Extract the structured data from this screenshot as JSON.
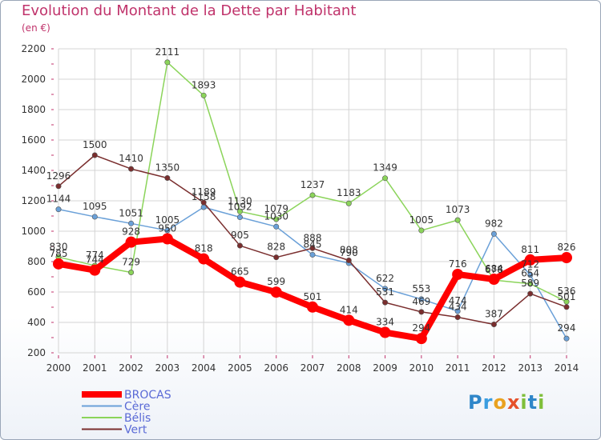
{
  "header": {
    "title": "Evolution du Montant de la Dette par Habitant",
    "unit": "(en €)"
  },
  "logo": {
    "text": "Proxiti"
  },
  "chart_data": {
    "type": "line",
    "x": [
      "2000",
      "2001",
      "2002",
      "2003",
      "2004",
      "2005",
      "2006",
      "2007",
      "2008",
      "2009",
      "2010",
      "2011",
      "2012",
      "2013",
      "2014"
    ],
    "ylim": [
      200,
      2200
    ],
    "yticks": [
      200,
      400,
      600,
      800,
      1000,
      1200,
      1400,
      1600,
      1800,
      2000,
      2200
    ],
    "grid": true,
    "legend_position": "bottom-left",
    "series": [
      {
        "name": "BROCAS",
        "color": "#ff0000",
        "values": [
          785,
          744,
          928,
          950,
          818,
          665,
          599,
          501,
          414,
          334,
          294,
          716,
          684,
          811,
          826
        ],
        "labels": [
          "785",
          "744",
          "928",
          "950",
          "818",
          "665",
          "599",
          "501",
          "414",
          "334",
          "294",
          "716",
          "684",
          "811",
          "826"
        ]
      },
      {
        "name": "Cère",
        "color": "#6aa0d8",
        "values": [
          1144,
          1095,
          1051,
          1005,
          1158,
          1092,
          1030,
          845,
          790,
          622,
          553,
          474,
          982,
          712,
          294
        ],
        "labels": [
          "1144",
          "1095",
          "1051",
          "1005",
          "1158",
          "1092",
          "1030",
          "845",
          "790",
          "622",
          "553",
          "474",
          "982",
          "712",
          "294"
        ]
      },
      {
        "name": "Bélis",
        "color": "#8bd45a",
        "values": [
          830,
          774,
          729,
          2111,
          1893,
          1130,
          1079,
          1237,
          1183,
          1349,
          1005,
          1073,
          678,
          654,
          536
        ],
        "labels": [
          "830",
          "774",
          "729",
          "2111",
          "1893",
          "1130",
          "1079",
          "1237",
          "1183",
          "1349",
          "1005",
          "1073",
          "678",
          "654",
          "536"
        ]
      },
      {
        "name": "Vert",
        "color": "#7a2e2e",
        "values": [
          1296,
          1500,
          1410,
          1350,
          1189,
          905,
          828,
          888,
          808,
          531,
          469,
          434,
          387,
          589,
          501
        ],
        "labels": [
          "1296",
          "1500",
          "1410",
          "1350",
          "1189",
          "905",
          "828",
          "888",
          "808",
          "531",
          "469",
          "434",
          "387",
          "589",
          "501"
        ]
      }
    ]
  }
}
